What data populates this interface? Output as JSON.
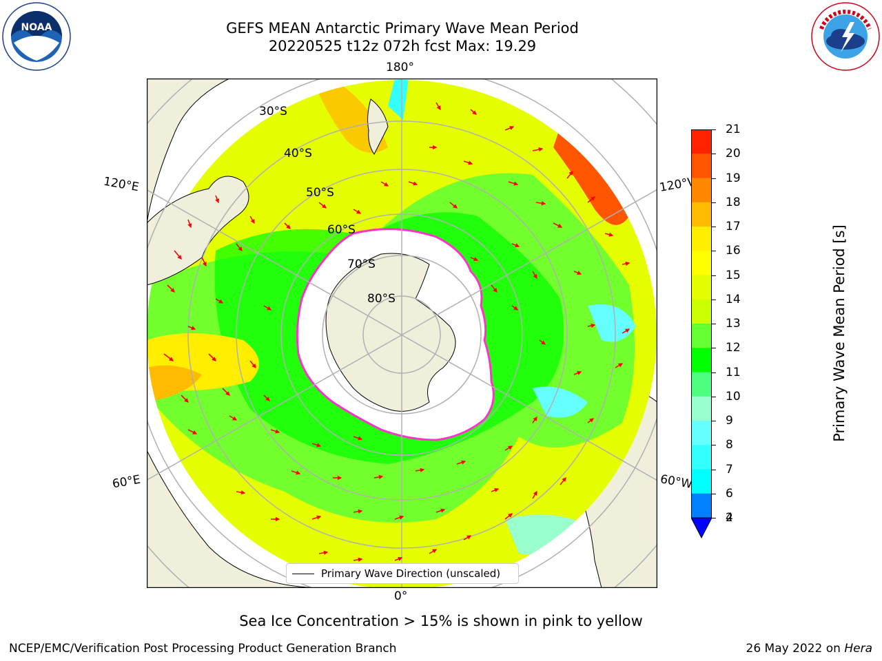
{
  "title": {
    "line1": "GEFS MEAN Antarctic Primary Wave Mean Period",
    "line2": "20220525 t12z 072h fcst   Max: 19.29"
  },
  "logos": {
    "left": "noaa-logo",
    "right": "nws-logo"
  },
  "map": {
    "projection": "south-polar-stereographic",
    "longitude_labels": {
      "top": "180°",
      "bottom": "0°",
      "upper_left": "120°E",
      "upper_right": "120°W",
      "lower_left": "60°E",
      "lower_right": "60°W"
    },
    "latitude_labels": [
      "30°S",
      "40°S",
      "50°S",
      "60°S",
      "70°S",
      "80°S"
    ],
    "colors": {
      "land": "#efefdc",
      "ice_edge": "#ff33cc",
      "arrow": "#ff0000",
      "grid": "#b0b0b0"
    }
  },
  "colorbar": {
    "title": "Primary Wave Mean Period [s]",
    "ticks": [
      "2",
      "4",
      "6",
      "7",
      "8",
      "9",
      "10",
      "11",
      "12",
      "13",
      "14",
      "15",
      "16",
      "17",
      "18",
      "19",
      "20",
      "21"
    ],
    "colors": [
      "#0000ff",
      "#007fff",
      "#00ffff",
      "#33ffff",
      "#66ffff",
      "#99ffcc",
      "#4dff7f",
      "#00ff00",
      "#66ff33",
      "#ccff00",
      "#e5ff00",
      "#ffff00",
      "#ffee00",
      "#ffbb00",
      "#ff8800",
      "#ff5500",
      "#ff2200"
    ]
  },
  "legend": {
    "label": "Primary Wave Direction (unscaled)"
  },
  "footer": {
    "note": "Sea Ice Concentration > 15% is shown in pink to yellow",
    "left": "NCEP/EMC/Verification Post Processing Product Generation Branch",
    "right_date": "26 May 2022 on ",
    "right_machine": "Hera"
  }
}
